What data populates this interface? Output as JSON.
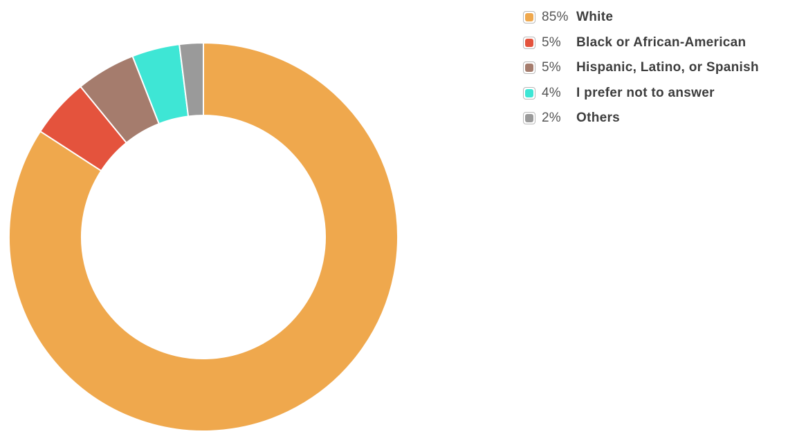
{
  "chart_data": {
    "type": "pie",
    "donut": true,
    "slices": [
      {
        "label": "White",
        "percent_label": "85%",
        "value": 85,
        "color": "#efa84d"
      },
      {
        "label": "Black or African-American",
        "percent_label": "5%",
        "value": 5,
        "color": "#e4533d"
      },
      {
        "label": "Hispanic, Latino, or Spanish",
        "percent_label": "5%",
        "value": 5,
        "color": "#a57c6d"
      },
      {
        "label": "I prefer not to answer",
        "percent_label": "4%",
        "value": 4,
        "color": "#3ee6d5"
      },
      {
        "label": "Others",
        "percent_label": "2%",
        "value": 2,
        "color": "#9a9a9a"
      }
    ],
    "legend_position": "top-right"
  }
}
